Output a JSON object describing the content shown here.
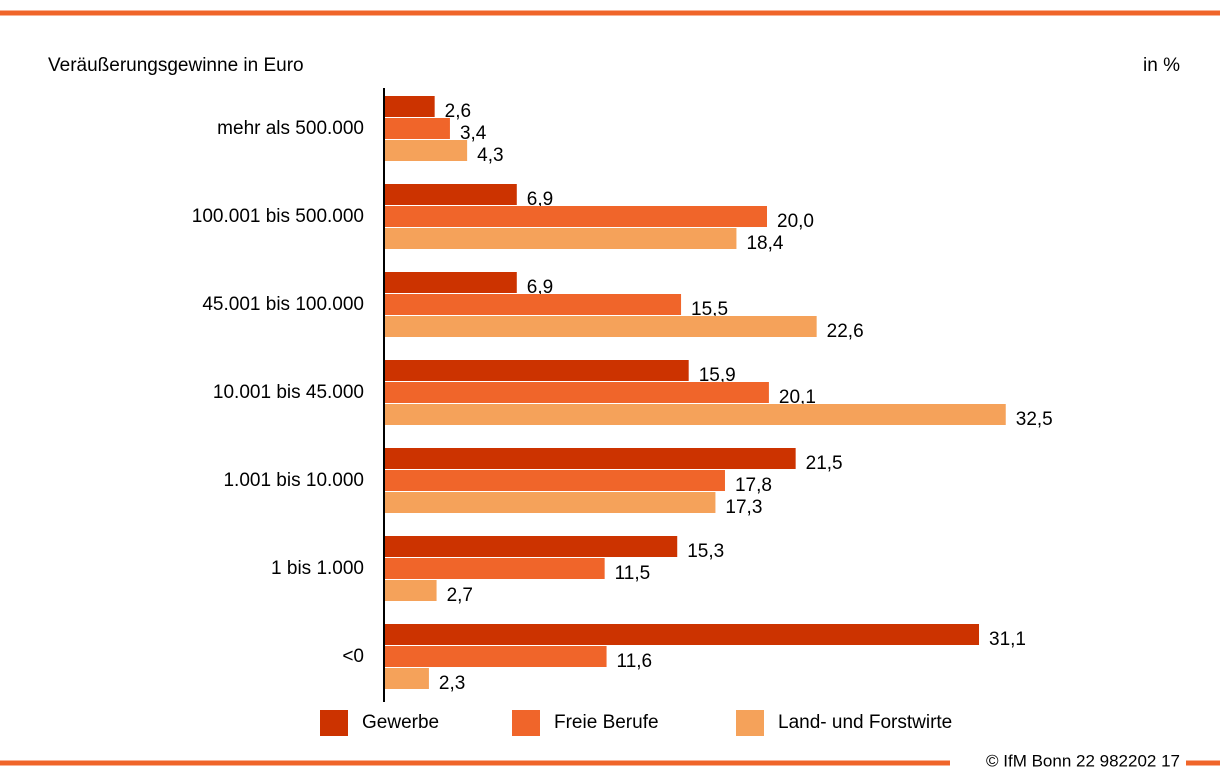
{
  "chart_data": {
    "type": "bar",
    "orientation": "horizontal",
    "y_axis_label": "Veräußerungsgewinne in Euro",
    "unit_label": "in %",
    "source": "© IfM Bonn 22 982202 17",
    "categories": [
      "mehr als 500.000",
      "100.001 bis 500.000",
      "45.001 bis 100.000",
      "10.001 bis 45.000",
      "1.001 bis 10.000",
      "1 bis 1.000",
      "<0"
    ],
    "series": [
      {
        "name": "Gewerbe",
        "color": "#cc3300",
        "values": [
          2.6,
          6.9,
          6.9,
          15.9,
          21.5,
          15.3,
          31.1
        ],
        "value_labels": [
          "2,6",
          "6,9",
          "6,9",
          "15,9",
          "21,5",
          "15,3",
          "31,1"
        ]
      },
      {
        "name": "Freie Berufe",
        "color": "#f0652a",
        "values": [
          3.4,
          20.0,
          15.5,
          20.1,
          17.8,
          11.5,
          11.6
        ],
        "value_labels": [
          "3,4",
          "20,0",
          "15,5",
          "20,1",
          "17,8",
          "11,5",
          "11,6"
        ]
      },
      {
        "name": "Land- und Forstwirte",
        "color": "#f5a25a",
        "values": [
          4.3,
          18.4,
          22.6,
          32.5,
          17.3,
          2.7,
          2.3
        ],
        "value_labels": [
          "4,3",
          "18,4",
          "22,6",
          "32,5",
          "17,3",
          "2,7",
          "2,3"
        ]
      }
    ],
    "xlim": [
      0,
      35
    ]
  }
}
